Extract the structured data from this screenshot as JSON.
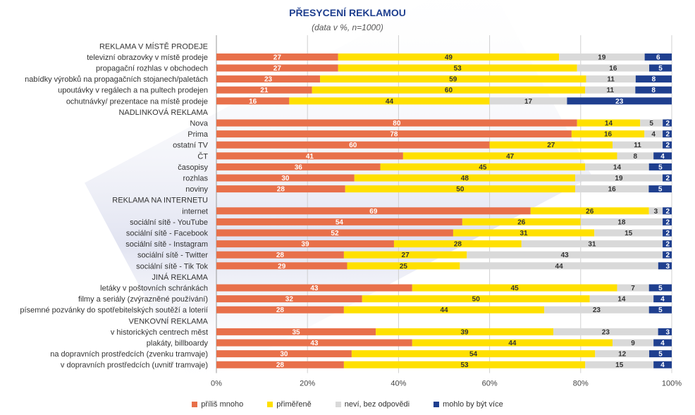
{
  "chart_data": {
    "type": "bar",
    "orientation": "horizontal",
    "stacked": true,
    "title": "PŘESYCENÍ REKLAMOU",
    "subtitle": "(data v %, n=1000)",
    "xlim": [
      0,
      100
    ],
    "xticks": [
      "0%",
      "20%",
      "40%",
      "60%",
      "80%",
      "100%"
    ],
    "grid": true,
    "legend_position": "bottom",
    "series": [
      {
        "name": "příliš mnoho",
        "color": "#e8704a"
      },
      {
        "name": "přiměřeně",
        "color": "#ffe000"
      },
      {
        "name": "neví, bez odpovědi",
        "color": "#d9d9d9"
      },
      {
        "name": "mohlo by být více",
        "color": "#1f3f8f"
      }
    ],
    "rows": [
      {
        "type": "group",
        "label": "REKLAMA V MÍSTĚ PRODEJE"
      },
      {
        "type": "bar",
        "label": "televizní obrazovky v místě prodeje",
        "values": [
          27,
          49,
          19,
          6
        ]
      },
      {
        "type": "bar",
        "label": "propagační rozhlas v obchodech",
        "values": [
          27,
          53,
          16,
          5
        ]
      },
      {
        "type": "bar",
        "label": "nabídky výrobků na propagačních stojanech/paletách",
        "values": [
          23,
          59,
          11,
          8
        ]
      },
      {
        "type": "bar",
        "label": "upoutávky v regálech a na pultech prodejen",
        "values": [
          21,
          60,
          11,
          8
        ]
      },
      {
        "type": "bar",
        "label": "ochutnávky/ prezentace na místě prodeje",
        "values": [
          16,
          44,
          17,
          23
        ]
      },
      {
        "type": "group",
        "label": "NADLINKOVÁ REKLAMA"
      },
      {
        "type": "bar",
        "label": "Nova",
        "values": [
          80,
          14,
          5,
          2
        ]
      },
      {
        "type": "bar",
        "label": "Prima",
        "values": [
          78,
          16,
          4,
          2
        ]
      },
      {
        "type": "bar",
        "label": "ostatní TV",
        "values": [
          60,
          27,
          11,
          2
        ]
      },
      {
        "type": "bar",
        "label": "ČT",
        "values": [
          41,
          47,
          8,
          4
        ]
      },
      {
        "type": "bar",
        "label": "časopisy",
        "values": [
          36,
          45,
          14,
          5
        ]
      },
      {
        "type": "bar",
        "label": "rozhlas",
        "values": [
          30,
          48,
          19,
          2
        ]
      },
      {
        "type": "bar",
        "label": "noviny",
        "values": [
          28,
          50,
          16,
          5
        ]
      },
      {
        "type": "group",
        "label": "REKLAMA NA INTERNETU"
      },
      {
        "type": "bar",
        "label": "internet",
        "values": [
          69,
          26,
          3,
          2
        ]
      },
      {
        "type": "bar",
        "label": "sociální sítě - YouTube",
        "values": [
          54,
          26,
          18,
          2
        ]
      },
      {
        "type": "bar",
        "label": "sociální sítě - Facebook",
        "values": [
          52,
          31,
          15,
          2
        ]
      },
      {
        "type": "bar",
        "label": "sociální sítě - Instagram",
        "values": [
          39,
          28,
          31,
          2
        ]
      },
      {
        "type": "bar",
        "label": "sociální sítě - Twitter",
        "values": [
          28,
          27,
          43,
          2
        ]
      },
      {
        "type": "bar",
        "label": "sociální sítě - Tik Tok",
        "values": [
          29,
          25,
          44,
          3
        ]
      },
      {
        "type": "group",
        "label": "JINÁ REKLAMA"
      },
      {
        "type": "bar",
        "label": "letáky v poštovních schránkách",
        "values": [
          43,
          45,
          7,
          5
        ]
      },
      {
        "type": "bar",
        "label": "filmy a seriály (zvýrazněné používání)",
        "values": [
          32,
          50,
          14,
          4
        ]
      },
      {
        "type": "bar",
        "label": "písemné pozvánky do spotřebitelských soutěží a loterií",
        "values": [
          28,
          44,
          23,
          5
        ]
      },
      {
        "type": "group",
        "label": "VENKOVNÍ REKLAMA"
      },
      {
        "type": "bar",
        "label": "v historických centrech měst",
        "values": [
          35,
          39,
          23,
          3
        ]
      },
      {
        "type": "bar",
        "label": "plakáty, billboardy",
        "values": [
          43,
          44,
          9,
          4
        ]
      },
      {
        "type": "bar",
        "label": "na dopravních prostředcích (zvenku tramvaje)",
        "values": [
          30,
          54,
          12,
          5
        ]
      },
      {
        "type": "bar",
        "label": "v dopravních prostředcích (uvnitř tramvaje)",
        "values": [
          28,
          53,
          15,
          4
        ]
      }
    ]
  }
}
